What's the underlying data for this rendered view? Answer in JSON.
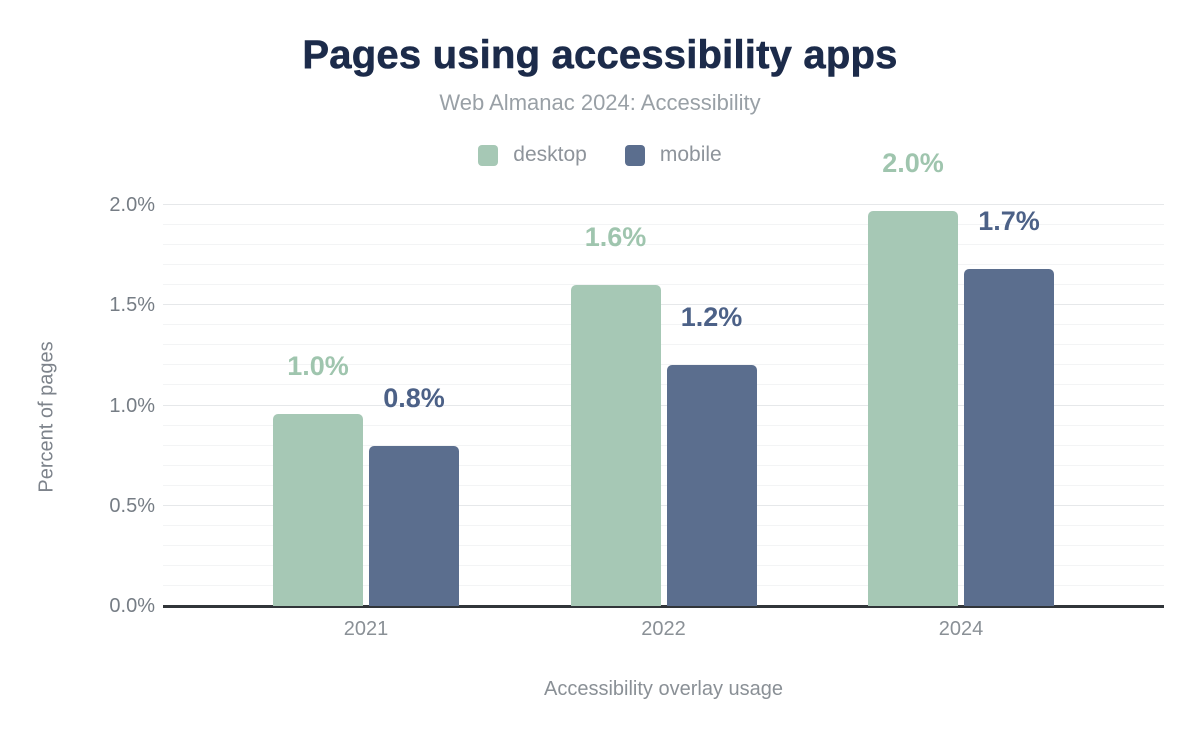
{
  "chart": {
    "title": "Pages using accessibility apps",
    "subtitle": "Web Almanac 2024: Accessibility"
  },
  "colors": {
    "title_text": "#1c2b4a",
    "subtitle_text": "#99a0a6",
    "tick_text": "#8a9096",
    "axis_line": "#313539",
    "gridline_minor": "#f3f4f5",
    "gridline_major": "#e6e8ea",
    "desktop": "#a6c8b5",
    "desktop_label": "#9fc5ae",
    "mobile": "#5b6e8e",
    "mobile_label": "#4c6187"
  },
  "chart_data": {
    "type": "bar",
    "title": "Pages using accessibility apps",
    "subtitle": "Web Almanac 2024: Accessibility",
    "categories": [
      "2021",
      "2022",
      "2024"
    ],
    "series": [
      {
        "name": "desktop",
        "color": "#a6c8b5",
        "label_color": "#9fc5ae",
        "values": [
          0.96,
          1.6,
          1.97
        ],
        "labels": [
          "1.0%",
          "1.6%",
          "2.0%"
        ]
      },
      {
        "name": "mobile",
        "color": "#5b6e8e",
        "label_color": "#4c6187",
        "values": [
          0.8,
          1.2,
          1.68
        ],
        "labels": [
          "0.8%",
          "1.2%",
          "1.7%"
        ]
      }
    ],
    "xlabel": "Accessibility overlay usage",
    "ylabel": "Percent of pages",
    "ylim": [
      0,
      2.0
    ],
    "yticks": [
      "0.0%",
      "0.5%",
      "1.0%",
      "1.5%",
      "2.0%"
    ],
    "grid": {
      "orientation": "horizontal",
      "minor_step": 0.1,
      "major_step": 0.5
    },
    "legend_position": "top-center"
  }
}
